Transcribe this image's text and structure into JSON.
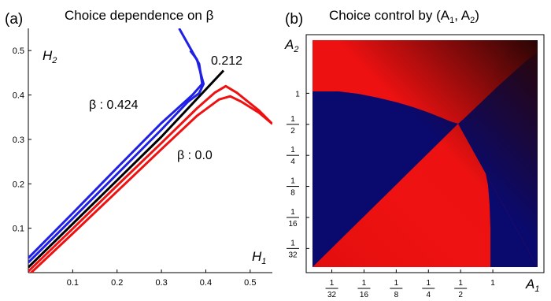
{
  "chart_data": [
    {
      "type": "line",
      "panel_label": "(a)",
      "title": "Choice dependence on β",
      "xlabel": "H",
      "xlabel_sub": "1",
      "ylabel": "H",
      "ylabel_sub": "2",
      "xlim": [
        0,
        0.55
      ],
      "ylim": [
        0,
        0.55
      ],
      "xticks": [
        0.1,
        0.2,
        0.3,
        0.4,
        0.5
      ],
      "yticks": [
        0.1,
        0.2,
        0.3,
        0.4,
        0.5
      ],
      "annotations": [
        {
          "text": "β : 0.424",
          "series": "blue"
        },
        {
          "text": "0.212",
          "series": "black"
        },
        {
          "text": "β : 0.0",
          "series": "red"
        }
      ],
      "series": [
        {
          "color": "#1f1fe6",
          "points": [
            [
              0,
              0.033
            ],
            [
              0.1,
              0.134
            ],
            [
              0.2,
              0.236
            ],
            [
              0.3,
              0.337
            ],
            [
              0.37,
              0.4
            ],
            [
              0.392,
              0.425
            ],
            [
              0.385,
              0.47
            ],
            [
              0.34,
              0.55
            ]
          ]
        },
        {
          "color": "#1f1fe6",
          "points": [
            [
              0,
              0.023
            ],
            [
              0.1,
              0.122
            ],
            [
              0.2,
              0.222
            ],
            [
              0.3,
              0.322
            ],
            [
              0.36,
              0.385
            ],
            [
              0.385,
              0.404
            ],
            [
              0.395,
              0.425
            ],
            [
              0.38,
              0.48
            ],
            [
              0.365,
              0.5
            ]
          ]
        },
        {
          "color": "#000000",
          "points": [
            [
              0,
              0.012
            ],
            [
              0.1,
              0.11
            ],
            [
              0.2,
              0.208
            ],
            [
              0.3,
              0.306
            ],
            [
              0.36,
              0.37
            ],
            [
              0.44,
              0.455
            ]
          ]
        },
        {
          "color": "#ee1111",
          "points": [
            [
              0,
              0.003
            ],
            [
              0.1,
              0.099
            ],
            [
              0.2,
              0.196
            ],
            [
              0.3,
              0.292
            ],
            [
              0.38,
              0.37
            ],
            [
              0.42,
              0.405
            ],
            [
              0.445,
              0.42
            ],
            [
              0.47,
              0.405
            ],
            [
              0.52,
              0.365
            ],
            [
              0.55,
              0.335
            ]
          ]
        },
        {
          "color": "#ee1111",
          "points": [
            [
              0,
              -0.006
            ],
            [
              0.1,
              0.088
            ],
            [
              0.2,
              0.183
            ],
            [
              0.3,
              0.278
            ],
            [
              0.38,
              0.353
            ],
            [
              0.43,
              0.39
            ],
            [
              0.455,
              0.397
            ],
            [
              0.48,
              0.385
            ],
            [
              0.52,
              0.36
            ],
            [
              0.55,
              0.335
            ]
          ]
        }
      ]
    },
    {
      "type": "heatmap",
      "panel_label": "(b)",
      "title": "Choice control by (A",
      "title_mid": ", A",
      "title_end": ")",
      "title_sub1": "1",
      "title_sub2": "2",
      "xlabel": "A",
      "xlabel_sub": "1",
      "ylabel": "A",
      "ylabel_sub": "2",
      "scale": "log2",
      "xticks": [
        {
          "num": "1",
          "den": "32",
          "value": 0.03125
        },
        {
          "num": "1",
          "den": "16",
          "value": 0.0625
        },
        {
          "num": "1",
          "den": "8",
          "value": 0.125
        },
        {
          "num": "1",
          "den": "4",
          "value": 0.25
        },
        {
          "num": "1",
          "den": "2",
          "value": 0.5
        },
        {
          "num": "1",
          "den": "",
          "value": 1
        }
      ],
      "yticks": [
        {
          "num": "1",
          "den": "32",
          "value": 0.03125
        },
        {
          "num": "1",
          "den": "16",
          "value": 0.0625
        },
        {
          "num": "1",
          "den": "8",
          "value": 0.125
        },
        {
          "num": "1",
          "den": "4",
          "value": 0.25
        },
        {
          "num": "1",
          "den": "2",
          "value": 0.5
        },
        {
          "num": "1",
          "den": "",
          "value": 1
        }
      ],
      "colors": {
        "red": "#ee1111",
        "navy": "#0a0a6e",
        "dark": "#2a0505"
      }
    }
  ]
}
